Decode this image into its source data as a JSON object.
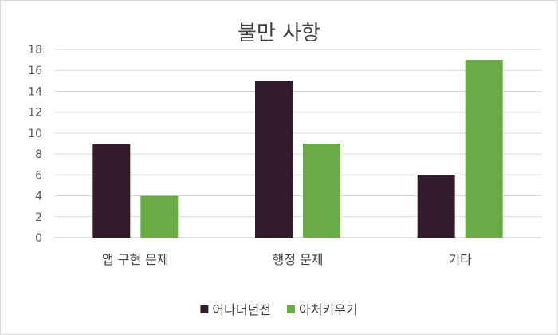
{
  "chart_data": {
    "type": "bar",
    "title": "불만 사항",
    "categories": [
      "앱 구현 문제",
      "행정 문제",
      "기타"
    ],
    "series": [
      {
        "name": "어나더던전",
        "values": [
          9,
          15,
          6
        ],
        "color": "#321b2a"
      },
      {
        "name": "아처키우기",
        "values": [
          4,
          9,
          17
        ],
        "color": "#6aab45"
      }
    ],
    "ylim": [
      0,
      18
    ],
    "yticks": [
      0,
      2,
      4,
      6,
      8,
      10,
      12,
      14,
      16,
      18
    ],
    "grid": true,
    "legend": "bottom"
  }
}
